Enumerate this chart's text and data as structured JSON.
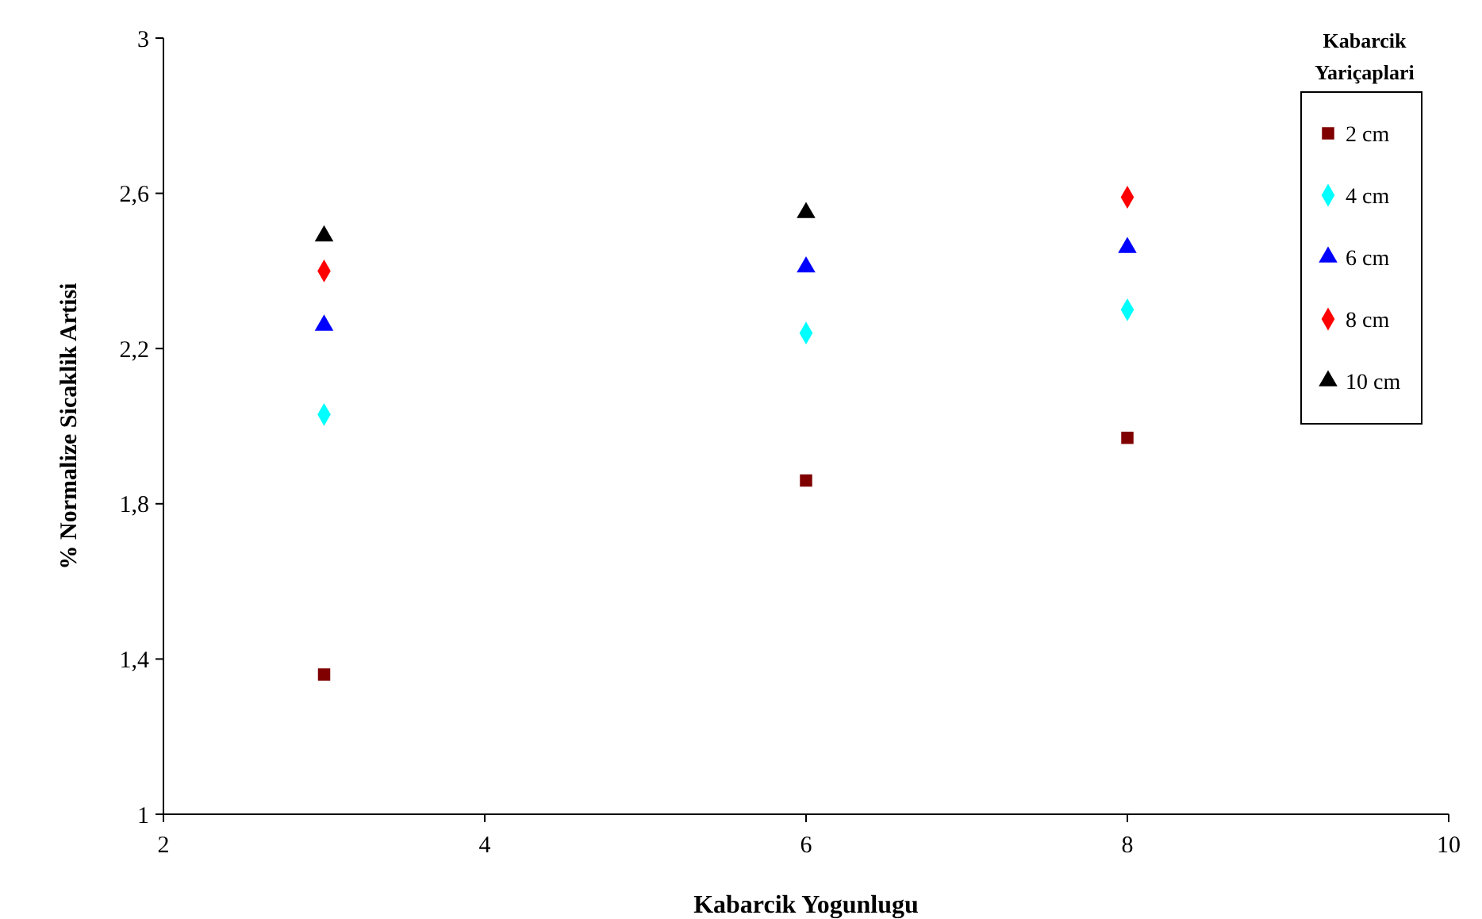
{
  "chart_data": {
    "type": "scatter",
    "xlabel": "Kabarcik Yogunlugu",
    "ylabel": "% Normalize Sicaklik Artisi",
    "legend_title": "Kabarcik Yariçaplari",
    "legend": "top right",
    "grid": false,
    "x": [
      3,
      6,
      8
    ],
    "xlim": [
      2,
      10
    ],
    "xticks": [
      2,
      4,
      6,
      8,
      10
    ],
    "ylim": [
      1,
      3
    ],
    "yticks": [
      1,
      {
        "value": 1.4,
        "label": "1,4"
      },
      {
        "value": 1.8,
        "label": "1,8"
      },
      {
        "value": 2.2,
        "label": "2,2"
      },
      {
        "value": 2.6,
        "label": "2,6"
      },
      3
    ],
    "series": [
      {
        "name": "2 cm",
        "color": "#800000",
        "marker": "square",
        "values": [
          1.36,
          1.86,
          1.97
        ]
      },
      {
        "name": "4 cm",
        "color": "#00ffff",
        "marker": "diamond",
        "values": [
          2.03,
          2.24,
          2.3
        ]
      },
      {
        "name": "6 cm",
        "color": "#0000ff",
        "marker": "triangle",
        "values": [
          2.26,
          2.41,
          2.46
        ]
      },
      {
        "name": "8 cm",
        "color": "#ff0000",
        "marker": "diamond",
        "values": [
          2.4,
          null,
          2.59
        ]
      },
      {
        "name": "10 cm",
        "color": "#000000",
        "marker": "triangle",
        "values": [
          2.49,
          2.55,
          null
        ]
      }
    ]
  }
}
